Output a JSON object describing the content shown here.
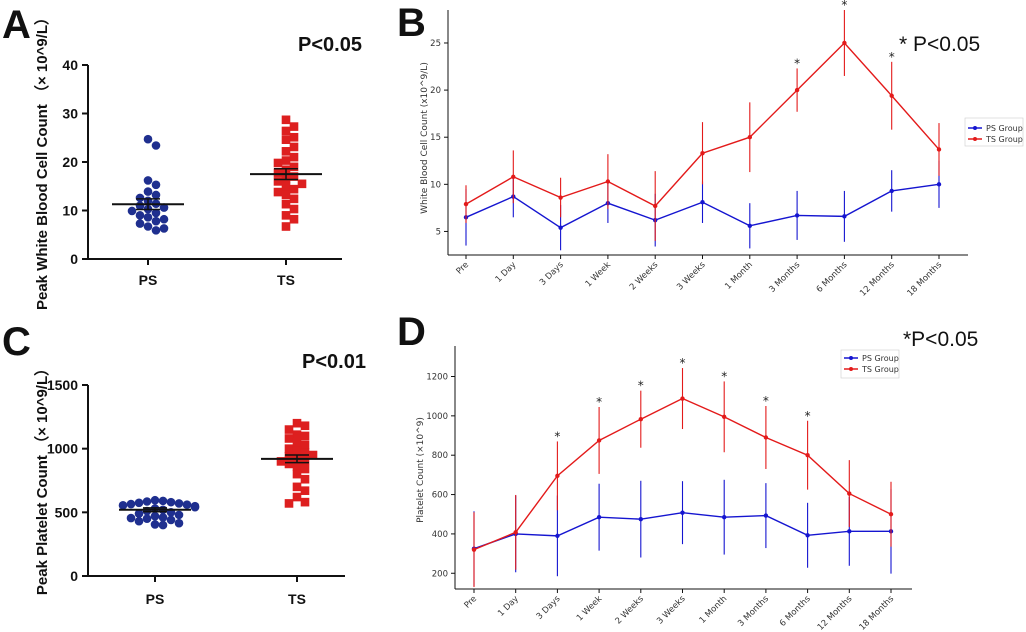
{
  "figure": {
    "panel_labels": [
      "A",
      "B",
      "C",
      "D"
    ]
  },
  "colors": {
    "ps_scatter": "#1f2f8f",
    "ts_scatter": "#dd1f1f",
    "ps_line": "#1515d0",
    "ts_line": "#e31a1a",
    "axis": "#111111"
  },
  "chart_data": [
    {
      "id": "A",
      "type": "scatter",
      "title": "",
      "annotation": "P<0.05",
      "ylabel": "Peak White Blood Cell Count  （× 10^9/L）",
      "xlabel": "",
      "categories": [
        "PS",
        "TS"
      ],
      "ylim": [
        0,
        40
      ],
      "yticks": [
        0,
        10,
        20,
        30,
        40
      ],
      "series": [
        {
          "name": "PS",
          "marker": "circle",
          "values": [
            24.7,
            23.4,
            16.2,
            15.3,
            13.9,
            13.2,
            12.6,
            12.0,
            11.4,
            11.0,
            10.6,
            10.3,
            9.9,
            9.5,
            9.0,
            8.6,
            8.2,
            7.8,
            7.3,
            6.7,
            6.3,
            5.9
          ],
          "mean": 11.3,
          "sem_upper": 12.4,
          "sem_lower": 10.2
        },
        {
          "name": "TS",
          "marker": "square",
          "values": [
            28.7,
            27.3,
            26.4,
            25.1,
            24.6,
            23.1,
            22.2,
            21.0,
            20.3,
            19.8,
            19.0,
            18.4,
            17.8,
            17.0,
            16.5,
            16.0,
            15.5,
            14.9,
            14.4,
            13.8,
            13.2,
            12.4,
            11.3,
            10.3,
            9.0,
            8.2,
            6.7
          ],
          "mean": 17.5,
          "sem_upper": 18.6,
          "sem_lower": 16.4
        }
      ]
    },
    {
      "id": "B",
      "type": "line",
      "title": "",
      "annotation": "* P<0.05",
      "ylabel": "White Blood Cell Count (x10^9/L)",
      "xlabel": "",
      "categories": [
        "Pre",
        "1 Day",
        "3 Days",
        "1 Week",
        "2 Weeks",
        "3 Weeks",
        "1 Month",
        "3 Months",
        "6 Months",
        "12 Months",
        "18 Months"
      ],
      "ylim": [
        2.5,
        28.5
      ],
      "yticks": [
        5,
        10,
        15,
        20,
        25
      ],
      "significant": [
        "3 Months",
        "6 Months",
        "12 Months"
      ],
      "legend_position": "right",
      "series": [
        {
          "name": "PS Group",
          "values": [
            6.5,
            8.7,
            5.4,
            8.0,
            6.2,
            8.1,
            5.6,
            6.7,
            6.6,
            9.3,
            10.0
          ],
          "errors": [
            3.0,
            2.2,
            2.4,
            2.1,
            2.8,
            2.2,
            2.4,
            2.6,
            2.7,
            2.2,
            2.5
          ]
        },
        {
          "name": "TS Group",
          "values": [
            7.9,
            10.8,
            8.6,
            10.3,
            7.7,
            13.3,
            15.0,
            20.0,
            25.0,
            19.4,
            13.7
          ],
          "errors": [
            2.0,
            2.8,
            2.1,
            2.9,
            3.7,
            3.3,
            3.7,
            2.3,
            3.5,
            3.6,
            2.8
          ]
        }
      ]
    },
    {
      "id": "C",
      "type": "scatter",
      "title": "",
      "annotation": "P<0.01",
      "ylabel": "Peak Platelet Count  （× 10^9/L）",
      "xlabel": "",
      "categories": [
        "PS",
        "TS"
      ],
      "ylim": [
        0,
        1500
      ],
      "yticks": [
        0,
        500,
        1000,
        1500
      ],
      "series": [
        {
          "name": "PS",
          "marker": "circle",
          "values": [
            595,
            590,
            585,
            580,
            575,
            570,
            565,
            560,
            555,
            548,
            540,
            530,
            520,
            510,
            500,
            490,
            480,
            470,
            460,
            455,
            450,
            440,
            430,
            415,
            405,
            400
          ],
          "mean": 520,
          "sem_upper": 535,
          "sem_lower": 505
        },
        {
          "name": "TS",
          "marker": "square",
          "values": [
            1200,
            1180,
            1150,
            1110,
            1100,
            1080,
            1050,
            1030,
            1000,
            985,
            970,
            950,
            940,
            925,
            905,
            900,
            880,
            860,
            840,
            800,
            760,
            700,
            670,
            620,
            580,
            570
          ],
          "mean": 920,
          "sem_upper": 950,
          "sem_lower": 890
        }
      ]
    },
    {
      "id": "D",
      "type": "line",
      "title": "",
      "annotation": "*P<0.05",
      "ylabel": "Platelet Count (×10^9)",
      "xlabel": "",
      "categories": [
        "Pre",
        "1 Day",
        "3 Days",
        "1 Week",
        "2 Weeks",
        "3 Weeks",
        "1 Month",
        "3 Months",
        "6 Months",
        "12 Months",
        "18 Months"
      ],
      "ylim": [
        120,
        1355
      ],
      "yticks": [
        200,
        400,
        600,
        800,
        1000,
        1200
      ],
      "significant": [
        "3 Days",
        "1 Week",
        "2 Weeks",
        "3 Weeks",
        "1 Month",
        "3 Months",
        "6 Months"
      ],
      "legend_position": "top-right",
      "series": [
        {
          "name": "PS Group",
          "values": [
            325,
            400,
            390,
            485,
            475,
            508,
            485,
            493,
            393,
            413,
            413
          ],
          "errors": [
            190,
            195,
            205,
            170,
            195,
            160,
            190,
            165,
            165,
            175,
            215
          ]
        },
        {
          "name": "TS Group",
          "values": [
            320,
            408,
            695,
            875,
            983,
            1088,
            995,
            890,
            800,
            605,
            500
          ],
          "errors": [
            190,
            190,
            175,
            170,
            145,
            155,
            180,
            160,
            175,
            170,
            165
          ]
        }
      ]
    }
  ]
}
